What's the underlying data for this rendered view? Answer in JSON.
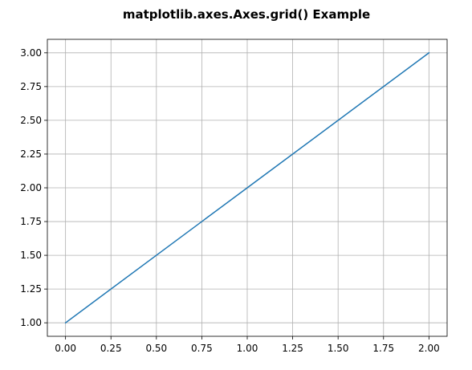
{
  "chart_data": {
    "type": "line",
    "title": "matplotlib.axes.Axes.grid() Example",
    "xlabel": "",
    "ylabel": "",
    "xlim": [
      -0.1,
      2.1
    ],
    "ylim": [
      0.9,
      3.1
    ],
    "xticks": [
      0.0,
      0.25,
      0.5,
      0.75,
      1.0,
      1.25,
      1.5,
      1.75,
      2.0
    ],
    "xtick_labels": [
      "0.00",
      "0.25",
      "0.50",
      "0.75",
      "1.00",
      "1.25",
      "1.50",
      "1.75",
      "2.00"
    ],
    "yticks": [
      1.0,
      1.25,
      1.5,
      1.75,
      2.0,
      2.25,
      2.5,
      2.75,
      3.0
    ],
    "ytick_labels": [
      "1.00",
      "1.25",
      "1.50",
      "1.75",
      "2.00",
      "2.25",
      "2.50",
      "2.75",
      "3.00"
    ],
    "grid": true,
    "series": [
      {
        "x": [
          0,
          1,
          2
        ],
        "y": [
          1,
          2,
          3
        ],
        "color": "#1f77b4"
      }
    ],
    "grid_color": "#b0b0b0"
  }
}
